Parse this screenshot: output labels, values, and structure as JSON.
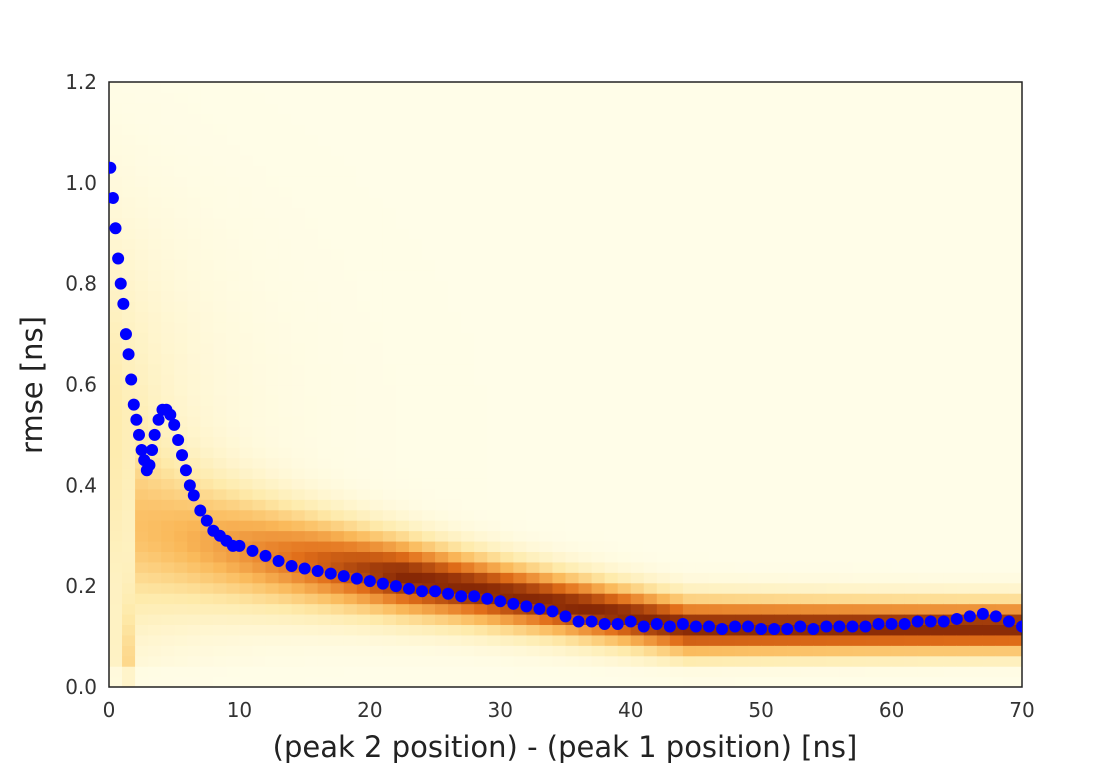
{
  "chart_data": {
    "type": "scatter",
    "xlabel": "(peak 2 position) - (peak 1 position) [ns]",
    "ylabel": "rmse [ns]",
    "xlim": [
      0,
      70
    ],
    "ylim": [
      0,
      1.2
    ],
    "xticks": [
      0,
      10,
      20,
      30,
      40,
      50,
      60,
      70
    ],
    "yticks": [
      0.0,
      0.2,
      0.4,
      0.6,
      0.8,
      1.0,
      1.2
    ],
    "ytick_labels": [
      "0.0",
      "0.2",
      "0.4",
      "0.6",
      "0.8",
      "1.0",
      "1.2"
    ],
    "grid": false,
    "legend": "none",
    "background_heatmap": {
      "colormap": "afmhot-reversed",
      "description_hint": "density of rmse values per separation; densest band near 0.05-0.25 ns"
    },
    "series": [
      {
        "color": "#0000ff",
        "x": [
          0.1,
          0.3,
          0.5,
          0.7,
          0.9,
          1.1,
          1.3,
          1.5,
          1.7,
          1.9,
          2.1,
          2.3,
          2.5,
          2.7,
          2.9,
          3.1,
          3.3,
          3.5,
          3.8,
          4.1,
          4.4,
          4.7,
          5.0,
          5.3,
          5.6,
          5.9,
          6.2,
          6.5,
          7.0,
          7.5,
          8.0,
          8.5,
          9.0,
          9.5,
          10,
          11,
          12,
          13,
          14,
          15,
          16,
          17,
          18,
          19,
          20,
          21,
          22,
          23,
          24,
          25,
          26,
          27,
          28,
          29,
          30,
          31,
          32,
          33,
          34,
          35,
          36,
          37,
          38,
          39,
          40,
          41,
          42,
          43,
          44,
          45,
          46,
          47,
          48,
          49,
          50,
          51,
          52,
          53,
          54,
          55,
          56,
          57,
          58,
          59,
          60,
          61,
          62,
          63,
          64,
          65,
          66,
          67,
          68,
          69,
          70
        ],
        "y": [
          1.03,
          0.97,
          0.91,
          0.85,
          0.8,
          0.76,
          0.7,
          0.66,
          0.61,
          0.56,
          0.53,
          0.5,
          0.47,
          0.45,
          0.43,
          0.44,
          0.47,
          0.5,
          0.53,
          0.55,
          0.55,
          0.54,
          0.52,
          0.49,
          0.46,
          0.43,
          0.4,
          0.38,
          0.35,
          0.33,
          0.31,
          0.3,
          0.29,
          0.28,
          0.28,
          0.27,
          0.26,
          0.25,
          0.24,
          0.235,
          0.23,
          0.225,
          0.22,
          0.215,
          0.21,
          0.205,
          0.2,
          0.195,
          0.19,
          0.19,
          0.185,
          0.18,
          0.18,
          0.175,
          0.17,
          0.165,
          0.16,
          0.155,
          0.15,
          0.14,
          0.13,
          0.13,
          0.125,
          0.125,
          0.13,
          0.12,
          0.125,
          0.12,
          0.125,
          0.12,
          0.12,
          0.115,
          0.12,
          0.12,
          0.115,
          0.115,
          0.115,
          0.12,
          0.115,
          0.12,
          0.12,
          0.12,
          0.12,
          0.125,
          0.125,
          0.125,
          0.13,
          0.13,
          0.13,
          0.135,
          0.14,
          0.145,
          0.14,
          0.13,
          0.12
        ]
      }
    ]
  }
}
